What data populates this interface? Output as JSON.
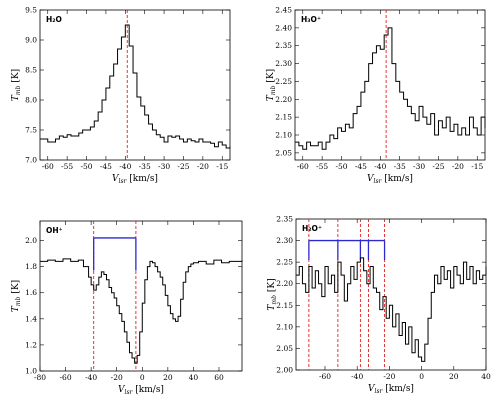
{
  "chart_data": [
    {
      "type": "line",
      "label": "H₂O",
      "xlabel": "V_lsr [km/s]",
      "ylabel": "T_mb [K]",
      "xlim": [
        -62,
        -13
      ],
      "ylim": [
        7.0,
        9.5
      ],
      "xticks": [
        -60,
        -55,
        -50,
        -45,
        -40,
        -35,
        -30,
        -25,
        -20,
        -15
      ],
      "yticks": [
        7.0,
        7.5,
        8.0,
        8.5,
        9.0,
        9.5
      ],
      "ytick_labels": [
        "7.0",
        "7.5",
        "8.0",
        "8.5",
        "9.0",
        "9.5"
      ],
      "vlines": [
        -39.5
      ],
      "series": [
        {
          "x": [
            -62,
            -60,
            -59,
            -58,
            -57,
            -56,
            -55,
            -54,
            -53,
            -52,
            -51,
            -50,
            -49,
            -48,
            -47,
            -46,
            -45,
            -44,
            -43,
            -42,
            -41,
            -40,
            -39,
            -38,
            -37,
            -36,
            -35,
            -34,
            -33,
            -32,
            -31,
            -30,
            -29,
            -28,
            -27,
            -26,
            -25,
            -24,
            -23,
            -22,
            -21,
            -20,
            -19,
            -18,
            -17,
            -16,
            -15,
            -14,
            -13
          ],
          "y": [
            7.35,
            7.3,
            7.3,
            7.35,
            7.4,
            7.38,
            7.42,
            7.4,
            7.4,
            7.45,
            7.5,
            7.5,
            7.55,
            7.65,
            7.8,
            8.0,
            8.2,
            8.4,
            8.6,
            8.85,
            9.05,
            9.25,
            8.9,
            8.45,
            8.05,
            7.9,
            7.75,
            7.6,
            7.5,
            7.42,
            7.38,
            7.3,
            7.4,
            7.38,
            7.4,
            7.35,
            7.3,
            7.35,
            7.32,
            7.3,
            7.35,
            7.3,
            7.3,
            7.28,
            7.22,
            7.3,
            7.25,
            7.2,
            7.22
          ]
        }
      ]
    },
    {
      "type": "line",
      "label": "H₃O⁺",
      "xlabel": "V_lsr [km/s]",
      "ylabel": "T_mb [K]",
      "xlim": [
        -62,
        -13
      ],
      "ylim": [
        2.03,
        2.45
      ],
      "xticks": [
        -60,
        -55,
        -50,
        -45,
        -40,
        -35,
        -30,
        -25,
        -20,
        -15
      ],
      "yticks": [
        2.05,
        2.1,
        2.15,
        2.2,
        2.25,
        2.3,
        2.35,
        2.4,
        2.45
      ],
      "ytick_labels": [
        "2.05",
        "2.10",
        "2.15",
        "2.20",
        "2.25",
        "2.30",
        "2.35",
        "2.40",
        "2.45"
      ],
      "vlines": [
        -38.5
      ],
      "series": [
        {
          "x": [
            -62,
            -61,
            -60,
            -59,
            -58,
            -57,
            -56,
            -55,
            -54,
            -53,
            -52,
            -51,
            -50,
            -49,
            -48,
            -47,
            -46,
            -45,
            -44,
            -43,
            -42,
            -41,
            -40,
            -39,
            -38,
            -37,
            -36,
            -35,
            -34,
            -33,
            -32,
            -31,
            -30,
            -29,
            -28,
            -27,
            -26,
            -25,
            -24,
            -23,
            -22,
            -21,
            -20,
            -19,
            -18,
            -17,
            -16,
            -15,
            -14,
            -13
          ],
          "y": [
            2.08,
            2.07,
            2.06,
            2.08,
            2.07,
            2.07,
            2.08,
            2.06,
            2.08,
            2.1,
            2.09,
            2.12,
            2.11,
            2.13,
            2.12,
            2.16,
            2.18,
            2.22,
            2.25,
            2.3,
            2.33,
            2.35,
            2.34,
            2.38,
            2.4,
            2.3,
            2.25,
            2.22,
            2.2,
            2.18,
            2.16,
            2.14,
            2.18,
            2.15,
            2.13,
            2.16,
            2.1,
            2.14,
            2.12,
            2.15,
            2.11,
            2.13,
            2.1,
            2.12,
            2.1,
            2.15,
            2.12,
            2.1,
            2.15,
            2.12
          ]
        }
      ]
    },
    {
      "type": "line",
      "label": "OH⁺",
      "xlabel": "V_lsr [km/s]",
      "ylabel": "T_mb [K]",
      "xlim": [
        -80,
        78
      ],
      "ylim": [
        1.0,
        2.15
      ],
      "xticks": [
        -80,
        -60,
        -40,
        -20,
        0,
        20,
        40,
        60
      ],
      "yticks": [
        1.0,
        1.2,
        1.4,
        1.6,
        1.8,
        2.0
      ],
      "ytick_labels": [
        "1.0",
        "1.2",
        "1.4",
        "1.6",
        "1.8",
        "2.0"
      ],
      "vlines": [
        -38,
        -5
      ],
      "hfs_bar": {
        "y": 2.02,
        "x": [
          -38,
          -5
        ],
        "tick_bottom": 1.77,
        "color": "#2a2ad0"
      },
      "series": [
        {
          "x": [
            -80,
            -74,
            -68,
            -62,
            -56,
            -50,
            -46,
            -42,
            -40,
            -38,
            -36,
            -34,
            -32,
            -30,
            -28,
            -26,
            -24,
            -22,
            -20,
            -18,
            -16,
            -14,
            -12,
            -10,
            -8,
            -6,
            -4,
            -2,
            0,
            2,
            4,
            6,
            8,
            10,
            12,
            14,
            16,
            18,
            20,
            22,
            24,
            26,
            28,
            30,
            32,
            34,
            36,
            38,
            40,
            44,
            50,
            56,
            62,
            68,
            74,
            78
          ],
          "y": [
            1.84,
            1.85,
            1.84,
            1.86,
            1.84,
            1.85,
            1.8,
            1.72,
            1.66,
            1.62,
            1.66,
            1.72,
            1.76,
            1.74,
            1.7,
            1.64,
            1.6,
            1.56,
            1.5,
            1.44,
            1.38,
            1.3,
            1.22,
            1.14,
            1.1,
            1.06,
            1.12,
            1.3,
            1.52,
            1.7,
            1.8,
            1.84,
            1.83,
            1.8,
            1.76,
            1.72,
            1.66,
            1.58,
            1.5,
            1.44,
            1.4,
            1.38,
            1.42,
            1.55,
            1.68,
            1.76,
            1.8,
            1.82,
            1.83,
            1.84,
            1.82,
            1.85,
            1.83,
            1.84,
            1.84,
            1.85
          ]
        }
      ]
    },
    {
      "type": "line",
      "label": "H₂O⁺",
      "xlabel": "V_lsr [km/s]",
      "ylabel": "T_mb [K]",
      "xlim": [
        -78,
        40
      ],
      "ylim": [
        2.0,
        2.35
      ],
      "xticks": [
        -60,
        -40,
        -20,
        0,
        20,
        40
      ],
      "yticks": [
        2.0,
        2.05,
        2.1,
        2.15,
        2.2,
        2.25,
        2.3,
        2.35
      ],
      "ytick_labels": [
        "2.00",
        "2.05",
        "2.10",
        "2.15",
        "2.20",
        "2.25",
        "2.30",
        "2.35"
      ],
      "vlines": [
        -70,
        -52,
        -38,
        -33,
        -23
      ],
      "hfs_bar": {
        "y": 2.3,
        "x": [
          -70,
          -23
        ],
        "sub_ticks": [
          -52,
          -38,
          -33,
          -23
        ],
        "tick_bottom": 2.255,
        "color": "#2a2ad0"
      },
      "series": [
        {
          "x": [
            -78,
            -76,
            -74,
            -72,
            -70,
            -68,
            -66,
            -64,
            -62,
            -60,
            -58,
            -56,
            -54,
            -52,
            -50,
            -48,
            -46,
            -44,
            -42,
            -40,
            -38,
            -36,
            -34,
            -32,
            -30,
            -28,
            -26,
            -24,
            -22,
            -20,
            -18,
            -16,
            -14,
            -12,
            -10,
            -8,
            -6,
            -4,
            -2,
            0,
            2,
            4,
            6,
            8,
            10,
            12,
            14,
            16,
            18,
            20,
            22,
            24,
            26,
            28,
            30,
            32,
            34,
            36,
            38,
            40
          ],
          "y": [
            2.22,
            2.24,
            2.2,
            2.18,
            2.24,
            2.19,
            2.23,
            2.2,
            2.17,
            2.24,
            2.2,
            2.22,
            2.18,
            2.25,
            2.22,
            2.16,
            2.2,
            2.24,
            2.21,
            2.25,
            2.26,
            2.23,
            2.2,
            2.24,
            2.19,
            2.18,
            2.14,
            2.17,
            2.12,
            2.15,
            2.1,
            2.13,
            2.08,
            2.11,
            2.06,
            2.1,
            2.04,
            2.07,
            2.03,
            2.02,
            2.06,
            2.12,
            2.18,
            2.22,
            2.2,
            2.24,
            2.21,
            2.23,
            2.19,
            2.24,
            2.22,
            2.2,
            2.25,
            2.21,
            2.24,
            2.2,
            2.23,
            2.21,
            2.22,
            2.24
          ]
        }
      ]
    }
  ]
}
